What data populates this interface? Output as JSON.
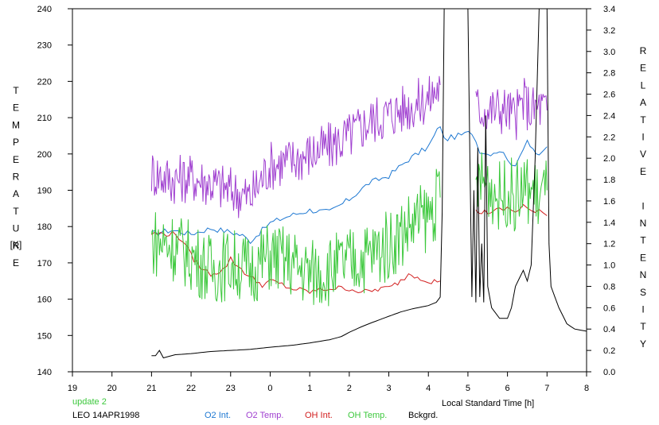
{
  "chart_data": {
    "type": "line",
    "left_axis": {
      "label": "TEMPERATURE",
      "unit": "[K]",
      "range": [
        140,
        240
      ],
      "ticks": [
        140,
        150,
        160,
        170,
        180,
        190,
        200,
        210,
        220,
        230,
        240
      ]
    },
    "right_axis": {
      "label": "RELATIVE INTENSITY",
      "range": [
        0.0,
        3.4
      ],
      "ticks": [
        "0.0",
        "0.2",
        "0.4",
        "0.6",
        "0.8",
        "1.0",
        "1.2",
        "1.4",
        "1.6",
        "1.8",
        "2.0",
        "2.2",
        "2.4",
        "2.6",
        "2.8",
        "3.0",
        "3.2",
        "3.4"
      ]
    },
    "x_axis": {
      "label": "Local Standard Time [h]",
      "range": [
        19,
        32
      ],
      "tick_labels": [
        "19",
        "20",
        "21",
        "22",
        "23",
        "0",
        "1",
        "2",
        "3",
        "4",
        "5",
        "6",
        "7",
        "8"
      ]
    },
    "update_note": "update 2",
    "site_date": "LEO 14APR1998",
    "series": [
      {
        "name": "O2 Int.",
        "color": "#1e78d2",
        "axis": "left",
        "points": [
          [
            21.0,
            178
          ],
          [
            21.5,
            179
          ],
          [
            22.0,
            178
          ],
          [
            22.5,
            179.5
          ],
          [
            23.0,
            178.5
          ],
          [
            23.3,
            177.5
          ],
          [
            23.5,
            176
          ],
          [
            23.8,
            179
          ],
          [
            24.0,
            181
          ],
          [
            24.5,
            183
          ],
          [
            25.0,
            184.5
          ],
          [
            25.5,
            184
          ],
          [
            26.0,
            187.5
          ],
          [
            26.5,
            192
          ],
          [
            27.0,
            194
          ],
          [
            27.5,
            198.5
          ],
          [
            28.0,
            202
          ],
          [
            28.3,
            208
          ],
          [
            28.4,
            204
          ],
          [
            29.1,
            206
          ],
          [
            29.3,
            201
          ],
          [
            29.5,
            200
          ],
          [
            29.8,
            201
          ],
          [
            30.0,
            199
          ],
          [
            30.2,
            196
          ],
          [
            30.4,
            202
          ],
          [
            30.5,
            204
          ],
          [
            30.8,
            199
          ],
          [
            31.0,
            202
          ]
        ],
        "gap_after": [
          28.4,
          29.3
        ]
      },
      {
        "name": "O2 Temp.",
        "color": "#a040d0",
        "axis": "left",
        "points": [
          [
            21.0,
            195
          ],
          [
            21.5,
            193
          ],
          [
            22.0,
            193.5
          ],
          [
            22.5,
            192
          ],
          [
            23.0,
            190
          ],
          [
            23.5,
            188
          ],
          [
            24.0,
            197
          ],
          [
            24.5,
            198
          ],
          [
            25.0,
            200
          ],
          [
            25.5,
            202
          ],
          [
            26.0,
            205
          ],
          [
            26.5,
            209
          ],
          [
            27.0,
            211
          ],
          [
            27.5,
            213
          ],
          [
            28.0,
            215
          ],
          [
            28.3,
            219
          ],
          [
            29.2,
            213
          ],
          [
            29.5,
            212
          ],
          [
            29.8,
            212.5
          ],
          [
            30.0,
            212
          ],
          [
            30.2,
            210
          ],
          [
            30.4,
            215
          ],
          [
            30.6,
            212
          ],
          [
            30.8,
            213
          ],
          [
            31.0,
            212
          ]
        ],
        "gap_after": [
          28.3,
          29.2
        ],
        "noise": 7
      },
      {
        "name": "OH Int.",
        "color": "#d21e1e",
        "axis": "left",
        "points": [
          [
            21.0,
            178
          ],
          [
            21.3,
            178
          ],
          [
            21.6,
            178
          ],
          [
            21.8,
            176
          ],
          [
            22.0,
            172
          ],
          [
            22.3,
            168
          ],
          [
            22.5,
            167
          ],
          [
            22.8,
            168
          ],
          [
            23.0,
            171
          ],
          [
            23.2,
            169
          ],
          [
            23.5,
            166
          ],
          [
            23.8,
            164
          ],
          [
            24.0,
            165
          ],
          [
            24.3,
            164
          ],
          [
            24.5,
            163
          ],
          [
            25.0,
            162
          ],
          [
            25.5,
            163
          ],
          [
            25.8,
            163
          ],
          [
            26.0,
            163
          ],
          [
            26.3,
            162
          ],
          [
            26.5,
            162
          ],
          [
            26.8,
            163
          ],
          [
            27.0,
            163
          ],
          [
            27.3,
            165
          ],
          [
            27.5,
            167
          ],
          [
            27.8,
            166
          ],
          [
            28.0,
            165
          ],
          [
            28.3,
            165
          ],
          [
            29.2,
            184
          ],
          [
            29.5,
            184
          ],
          [
            29.8,
            184.5
          ],
          [
            30.0,
            185
          ],
          [
            30.2,
            184
          ],
          [
            30.4,
            186
          ],
          [
            30.6,
            184
          ],
          [
            30.8,
            184
          ],
          [
            31.0,
            183
          ]
        ],
        "gap_after": [
          28.3,
          29.2
        ]
      },
      {
        "name": "OH Temp.",
        "color": "#3cc83c",
        "axis": "left",
        "points": [
          [
            21.0,
            176
          ],
          [
            21.5,
            175
          ],
          [
            22.0,
            172
          ],
          [
            22.5,
            168
          ],
          [
            23.0,
            170
          ],
          [
            23.5,
            168
          ],
          [
            24.0,
            172
          ],
          [
            24.5,
            170
          ],
          [
            25.0,
            167
          ],
          [
            25.5,
            168
          ],
          [
            26.0,
            170
          ],
          [
            26.5,
            172
          ],
          [
            27.0,
            175
          ],
          [
            27.5,
            180
          ],
          [
            28.0,
            183
          ],
          [
            28.3,
            188
          ],
          [
            29.2,
            192
          ],
          [
            29.5,
            192
          ],
          [
            29.8,
            188
          ],
          [
            30.0,
            190
          ],
          [
            30.2,
            188
          ],
          [
            30.4,
            190
          ],
          [
            30.6,
            190
          ],
          [
            30.8,
            188
          ],
          [
            31.0,
            190
          ]
        ],
        "gap_after": [
          28.3,
          29.2
        ],
        "noise": 10
      },
      {
        "name": "Bckgrd.",
        "color": "#000000",
        "axis": "right",
        "points": [
          [
            21.0,
            0.15
          ],
          [
            21.1,
            0.15
          ],
          [
            21.2,
            0.2
          ],
          [
            21.3,
            0.13
          ],
          [
            21.6,
            0.16
          ],
          [
            22.0,
            0.17
          ],
          [
            22.5,
            0.19
          ],
          [
            23.0,
            0.2
          ],
          [
            23.5,
            0.21
          ],
          [
            24.0,
            0.23
          ],
          [
            24.3,
            0.24
          ],
          [
            24.6,
            0.25
          ],
          [
            25.0,
            0.27
          ],
          [
            25.5,
            0.3
          ],
          [
            25.8,
            0.33
          ],
          [
            26.0,
            0.37
          ],
          [
            26.3,
            0.42
          ],
          [
            26.5,
            0.45
          ],
          [
            27.0,
            0.52
          ],
          [
            27.3,
            0.56
          ],
          [
            27.6,
            0.59
          ],
          [
            28.0,
            0.62
          ],
          [
            28.2,
            0.65
          ],
          [
            28.3,
            0.7
          ],
          [
            28.35,
            1.5
          ],
          [
            28.4,
            3.4
          ],
          [
            28.5,
            3.4
          ],
          [
            28.6,
            3.4
          ],
          [
            28.8,
            3.4
          ],
          [
            28.9,
            3.4
          ],
          [
            29.0,
            3.4
          ],
          [
            29.05,
            2.0
          ],
          [
            29.1,
            0.7
          ],
          [
            29.15,
            1.7
          ],
          [
            29.2,
            0.65
          ],
          [
            29.25,
            2.1
          ],
          [
            29.3,
            0.7
          ],
          [
            29.35,
            1.2
          ],
          [
            29.4,
            0.65
          ],
          [
            29.45,
            2.4
          ],
          [
            29.5,
            0.8
          ],
          [
            29.6,
            0.6
          ],
          [
            29.7,
            0.55
          ],
          [
            29.8,
            0.5
          ],
          [
            30.0,
            0.5
          ],
          [
            30.1,
            0.6
          ],
          [
            30.2,
            0.8
          ],
          [
            30.4,
            0.95
          ],
          [
            30.5,
            0.85
          ],
          [
            30.6,
            1.0
          ],
          [
            30.7,
            2.0
          ],
          [
            30.8,
            3.4
          ],
          [
            30.9,
            3.4
          ],
          [
            31.0,
            3.4
          ],
          [
            31.05,
            1.2
          ],
          [
            31.1,
            0.8
          ],
          [
            31.3,
            0.6
          ],
          [
            31.5,
            0.45
          ],
          [
            31.7,
            0.4
          ],
          [
            32.0,
            0.38
          ]
        ]
      }
    ]
  }
}
